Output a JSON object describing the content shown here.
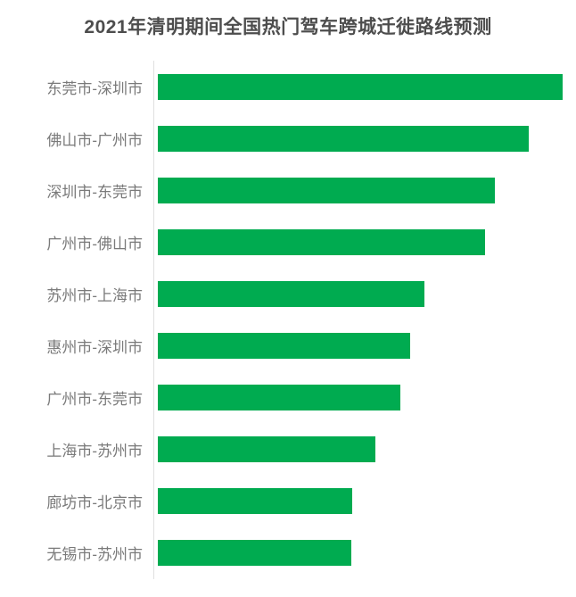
{
  "page": {
    "background_color": "#ffffff"
  },
  "chart_data": {
    "type": "bar",
    "orientation": "horizontal",
    "title": "2021年清明期间全国热门驾车跨城迁徙路线预测",
    "categories": [
      "东莞市-深圳市",
      "佛山市-广州市",
      "深圳市-东莞市",
      "广州市-佛山市",
      "苏州市-上海市",
      "惠州市-深圳市",
      "广州市-东莞市",
      "上海市-苏州市",
      "廊坊市-北京市",
      "无锡市-苏州市"
    ],
    "values": [
      100,
      91.6,
      83.3,
      80.8,
      65.9,
      62.3,
      59.9,
      53.7,
      48.0,
      47.8
    ],
    "value_note": "relative bar lengths as percent of longest bar; chart shows no numeric axis, ticks or data labels",
    "xlabel": "",
    "ylabel": "",
    "grid": false,
    "legend": false,
    "axis_ticks_shown": false,
    "value_labels_shown": false,
    "bar_color": "#00ab50",
    "title_color": "#4d4d4d",
    "label_color": "#7a7a7a",
    "axis_line_color": "#e0e0e0"
  }
}
